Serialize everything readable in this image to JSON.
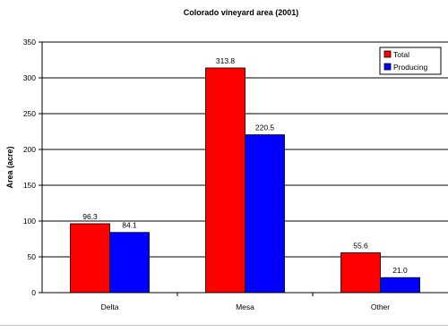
{
  "chart_data": {
    "type": "bar",
    "title": "Colorado vineyard area (2001)",
    "xlabel": "",
    "ylabel": "Area (acre)",
    "categories": [
      "Delta",
      "Mesa",
      "Other"
    ],
    "series": [
      {
        "name": "Total",
        "values": [
          96.3,
          313.8,
          55.6
        ],
        "labels": [
          "96.3",
          "313.8",
          "55.6"
        ],
        "color": "#ff0000"
      },
      {
        "name": "Producing",
        "values": [
          84.1,
          220.5,
          21.0
        ],
        "labels": [
          "84.1",
          "220.5",
          "21.0"
        ],
        "color": "#0000ff"
      }
    ],
    "ylim": [
      0,
      350
    ],
    "yticks": [
      0,
      50,
      100,
      150,
      200,
      250,
      300,
      350
    ],
    "grid": true,
    "legend_position": "top-right"
  }
}
